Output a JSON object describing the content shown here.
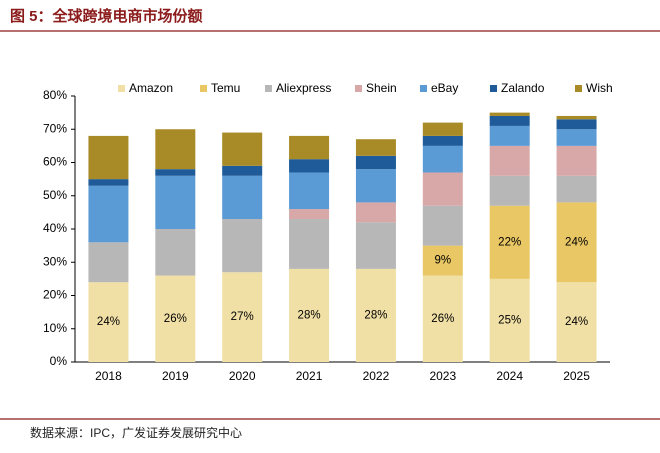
{
  "chart_data": {
    "type": "stacked_bar",
    "title": "图 5：全球跨境电商市场份额",
    "source": "数据来源：IPC，广发证券发展研究中心",
    "categories": [
      "2018",
      "2019",
      "2020",
      "2021",
      "2022",
      "2023",
      "2024",
      "2025"
    ],
    "series": [
      {
        "name": "Amazon",
        "color": "#f1e0a6",
        "values": [
          24,
          26,
          27,
          28,
          28,
          26,
          25,
          24
        ],
        "value_labels": [
          "24%",
          "26%",
          "27%",
          "28%",
          "28%",
          "26%",
          "25%",
          "24%"
        ]
      },
      {
        "name": "Temu",
        "color": "#e9c764",
        "values": [
          0,
          0,
          0,
          0,
          0,
          9,
          22,
          24
        ],
        "value_labels": [
          null,
          null,
          null,
          null,
          null,
          "9%",
          "22%",
          "24%"
        ]
      },
      {
        "name": "Aliexpress",
        "color": "#b7b7b7",
        "values": [
          12,
          14,
          16,
          15,
          14,
          12,
          9,
          8
        ]
      },
      {
        "name": "Shein",
        "color": "#d8a8a8",
        "values": [
          0,
          0,
          0,
          3,
          6,
          10,
          9,
          9
        ]
      },
      {
        "name": "eBay",
        "color": "#5b9bd5",
        "values": [
          17,
          16,
          13,
          11,
          10,
          8,
          6,
          5
        ]
      },
      {
        "name": "Zalando",
        "color": "#1f5b98",
        "values": [
          2,
          2,
          3,
          4,
          4,
          3,
          3,
          3
        ]
      },
      {
        "name": "Wish",
        "color": "#a88a26",
        "values": [
          13,
          12,
          10,
          7,
          5,
          4,
          1,
          1
        ]
      }
    ],
    "ylim": [
      0,
      80
    ],
    "yticks": [
      {
        "value": 0,
        "label": "0%"
      },
      {
        "value": 10,
        "label": "10%"
      },
      {
        "value": 20,
        "label": "20%"
      },
      {
        "value": 30,
        "label": "30%"
      },
      {
        "value": 40,
        "label": "40%"
      },
      {
        "value": 50,
        "label": "50%"
      },
      {
        "value": 60,
        "label": "60%"
      },
      {
        "value": 70,
        "label": "70%"
      },
      {
        "value": 80,
        "label": "80%"
      }
    ],
    "legend": "top"
  }
}
